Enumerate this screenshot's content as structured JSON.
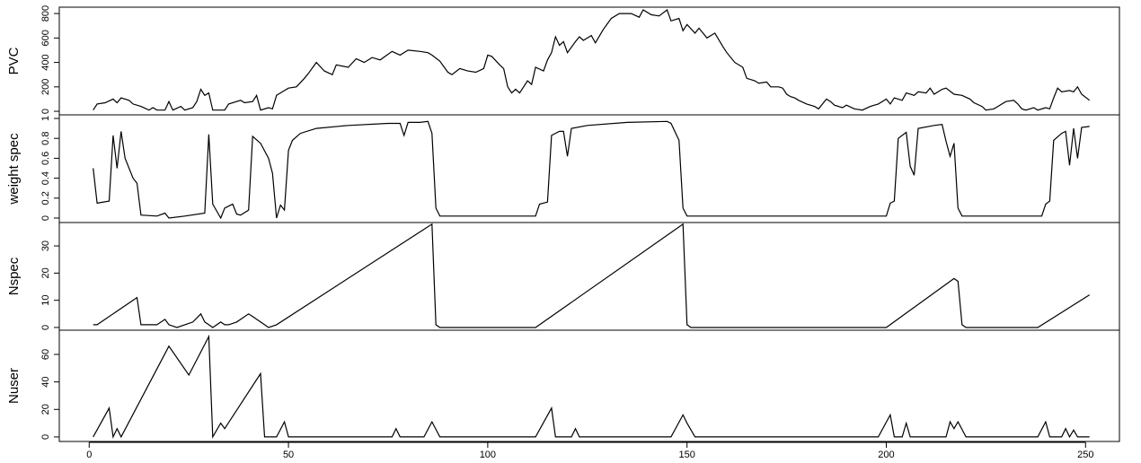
{
  "chart_data": [
    {
      "type": "line",
      "y_label": "PVC",
      "color": "#000000",
      "xlim": [
        -7.5,
        258.5
      ],
      "ylim": [
        -29,
        852
      ],
      "yticks": [
        0,
        200,
        400,
        600,
        800
      ],
      "x": [
        1,
        2,
        4,
        6,
        7,
        8,
        10,
        11,
        13,
        15,
        16,
        17,
        19,
        20,
        21,
        23,
        24,
        26,
        27,
        28,
        29,
        30,
        31,
        34,
        35,
        38,
        39,
        41,
        42,
        43,
        45,
        46,
        47,
        49,
        50,
        52,
        54,
        55,
        57,
        59,
        61,
        62,
        65,
        67,
        69,
        71,
        73,
        76,
        78,
        80,
        83,
        85,
        86,
        88,
        90,
        91,
        93,
        95,
        97,
        99,
        100,
        101,
        103,
        104,
        105,
        106,
        107,
        108,
        110,
        111,
        112,
        114,
        115,
        116,
        117,
        118,
        119,
        120,
        122,
        123,
        124,
        126,
        127,
        129,
        131,
        133,
        136,
        138,
        139,
        141,
        143,
        145,
        146,
        148,
        149,
        150,
        152,
        153,
        155,
        157,
        159,
        160,
        162,
        164,
        165,
        167,
        168,
        170,
        171,
        173,
        174,
        175,
        176,
        177,
        178,
        180,
        182,
        183,
        185,
        186,
        187,
        189,
        190,
        192,
        194,
        196,
        198,
        200,
        201,
        202,
        204,
        205,
        207,
        208,
        210,
        211,
        212,
        214,
        215,
        217,
        219,
        221,
        222,
        224,
        225,
        227,
        228,
        230,
        232,
        233,
        234,
        235,
        237,
        238,
        240,
        241,
        242,
        243,
        244,
        246,
        247,
        248,
        249,
        251
      ],
      "values": [
        10,
        60,
        70,
        100,
        70,
        110,
        90,
        60,
        40,
        10,
        30,
        10,
        10,
        80,
        10,
        40,
        10,
        30,
        80,
        180,
        130,
        150,
        10,
        10,
        60,
        90,
        70,
        80,
        130,
        10,
        30,
        20,
        130,
        170,
        190,
        200,
        270,
        310,
        400,
        330,
        300,
        380,
        360,
        430,
        400,
        440,
        420,
        490,
        460,
        500,
        490,
        480,
        460,
        410,
        320,
        300,
        350,
        330,
        320,
        350,
        460,
        450,
        380,
        350,
        200,
        150,
        180,
        150,
        250,
        220,
        360,
        330,
        420,
        480,
        610,
        540,
        570,
        480,
        570,
        610,
        580,
        620,
        560,
        670,
        760,
        800,
        800,
        770,
        830,
        790,
        780,
        830,
        740,
        760,
        660,
        710,
        640,
        680,
        600,
        640,
        530,
        480,
        400,
        360,
        270,
        250,
        230,
        240,
        200,
        200,
        190,
        140,
        120,
        110,
        90,
        60,
        40,
        20,
        100,
        80,
        50,
        30,
        50,
        20,
        10,
        40,
        60,
        100,
        60,
        110,
        90,
        150,
        130,
        160,
        150,
        190,
        140,
        180,
        190,
        140,
        130,
        100,
        70,
        40,
        10,
        20,
        40,
        80,
        90,
        60,
        20,
        10,
        30,
        10,
        30,
        20,
        110,
        190,
        160,
        170,
        160,
        200,
        140,
        90
      ]
    },
    {
      "type": "line",
      "y_label": "weight spec",
      "color": "#000000",
      "xlim": [
        -7.5,
        258.5
      ],
      "ylim": [
        -0.045,
        1.036
      ],
      "yticks": [
        0,
        0.2,
        0.4,
        0.6,
        0.8,
        1
      ],
      "x": [
        1,
        2,
        5,
        6,
        7,
        8,
        9,
        11,
        12,
        13,
        17,
        19,
        20,
        24,
        29,
        30,
        31,
        33,
        34,
        36,
        37,
        38,
        40,
        41,
        43,
        45,
        46,
        47,
        48,
        49,
        50,
        51,
        53,
        57,
        65,
        75,
        78,
        79,
        80,
        83,
        85,
        86,
        87,
        88,
        112,
        113,
        115,
        116,
        118,
        119,
        120,
        121,
        125,
        135,
        145,
        146,
        148,
        149,
        150,
        200,
        201,
        202,
        203,
        205,
        206,
        207,
        208,
        212,
        214,
        215,
        216,
        217,
        218,
        219,
        239,
        240,
        241,
        242,
        244,
        245,
        246,
        247,
        248,
        249,
        251
      ],
      "values": [
        0.5,
        0.15,
        0.17,
        0.83,
        0.5,
        0.87,
        0.6,
        0.4,
        0.35,
        0.03,
        0.02,
        0.05,
        0,
        0.02,
        0.05,
        0.84,
        0.14,
        0,
        0.1,
        0.14,
        0.04,
        0.03,
        0.08,
        0.82,
        0.75,
        0.6,
        0.45,
        0,
        0.13,
        0.08,
        0.68,
        0.78,
        0.85,
        0.9,
        0.93,
        0.95,
        0.95,
        0.83,
        0.96,
        0.96,
        0.97,
        0.85,
        0.1,
        0.02,
        0.02,
        0.14,
        0.16,
        0.83,
        0.87,
        0.87,
        0.62,
        0.9,
        0.93,
        0.96,
        0.97,
        0.95,
        0.78,
        0.1,
        0.02,
        0.02,
        0.15,
        0.17,
        0.8,
        0.86,
        0.52,
        0.43,
        0.9,
        0.93,
        0.94,
        0.77,
        0.62,
        0.75,
        0.1,
        0.02,
        0.02,
        0.14,
        0.17,
        0.78,
        0.85,
        0.87,
        0.53,
        0.9,
        0.6,
        0.91,
        0.92
      ]
    },
    {
      "type": "line",
      "y_label": "Nspec",
      "color": "#000000",
      "xlim": [
        -7.5,
        258.5
      ],
      "ylim": [
        -1,
        38.6
      ],
      "yticks": [
        0,
        10,
        20,
        30
      ],
      "x": [
        1,
        2,
        12,
        13,
        17,
        19,
        20,
        22,
        24,
        26,
        28,
        29,
        30,
        31,
        33,
        34,
        35,
        37,
        40,
        41,
        44,
        45,
        47,
        86,
        87,
        88,
        112,
        149,
        150,
        151,
        200,
        217,
        218,
        219,
        220,
        238,
        251
      ],
      "values": [
        1,
        1,
        11,
        1,
        1,
        3,
        1,
        0,
        1,
        2,
        5,
        2,
        1,
        0,
        2,
        1,
        1,
        2,
        5,
        4,
        1,
        0,
        1,
        38,
        1,
        0,
        0,
        38,
        1,
        0,
        0,
        18,
        17,
        1,
        0,
        0,
        12
      ]
    },
    {
      "type": "line",
      "y_label": "Nuser",
      "color": "#000000",
      "xlim": [
        -7.5,
        258.5
      ],
      "ylim": [
        -3.3,
        77.6
      ],
      "yticks": [
        0,
        20,
        40,
        60
      ],
      "xticks": [
        0,
        50,
        100,
        150,
        200,
        250
      ],
      "x": [
        1,
        5,
        6,
        7,
        8,
        20,
        25,
        30,
        31,
        33,
        34,
        43,
        44,
        47,
        49,
        50,
        76,
        77,
        78,
        84,
        86,
        88,
        112,
        116,
        117,
        121,
        122,
        123,
        146,
        149,
        150,
        152,
        198,
        201,
        202,
        204,
        205,
        206,
        215,
        216,
        217,
        218,
        220,
        238,
        240,
        241,
        244,
        245,
        246,
        247,
        248,
        251
      ],
      "values": [
        0,
        21,
        0,
        6,
        0,
        66,
        45,
        73,
        0,
        10,
        6,
        46,
        0,
        0,
        11,
        0,
        0,
        6,
        0,
        0,
        11,
        0,
        0,
        21,
        0,
        0,
        6,
        0,
        0,
        16,
        10,
        0,
        0,
        16,
        0,
        0,
        10,
        0,
        0,
        11,
        6,
        11,
        0,
        0,
        11,
        0,
        0,
        6,
        0,
        5,
        0,
        0
      ]
    }
  ]
}
